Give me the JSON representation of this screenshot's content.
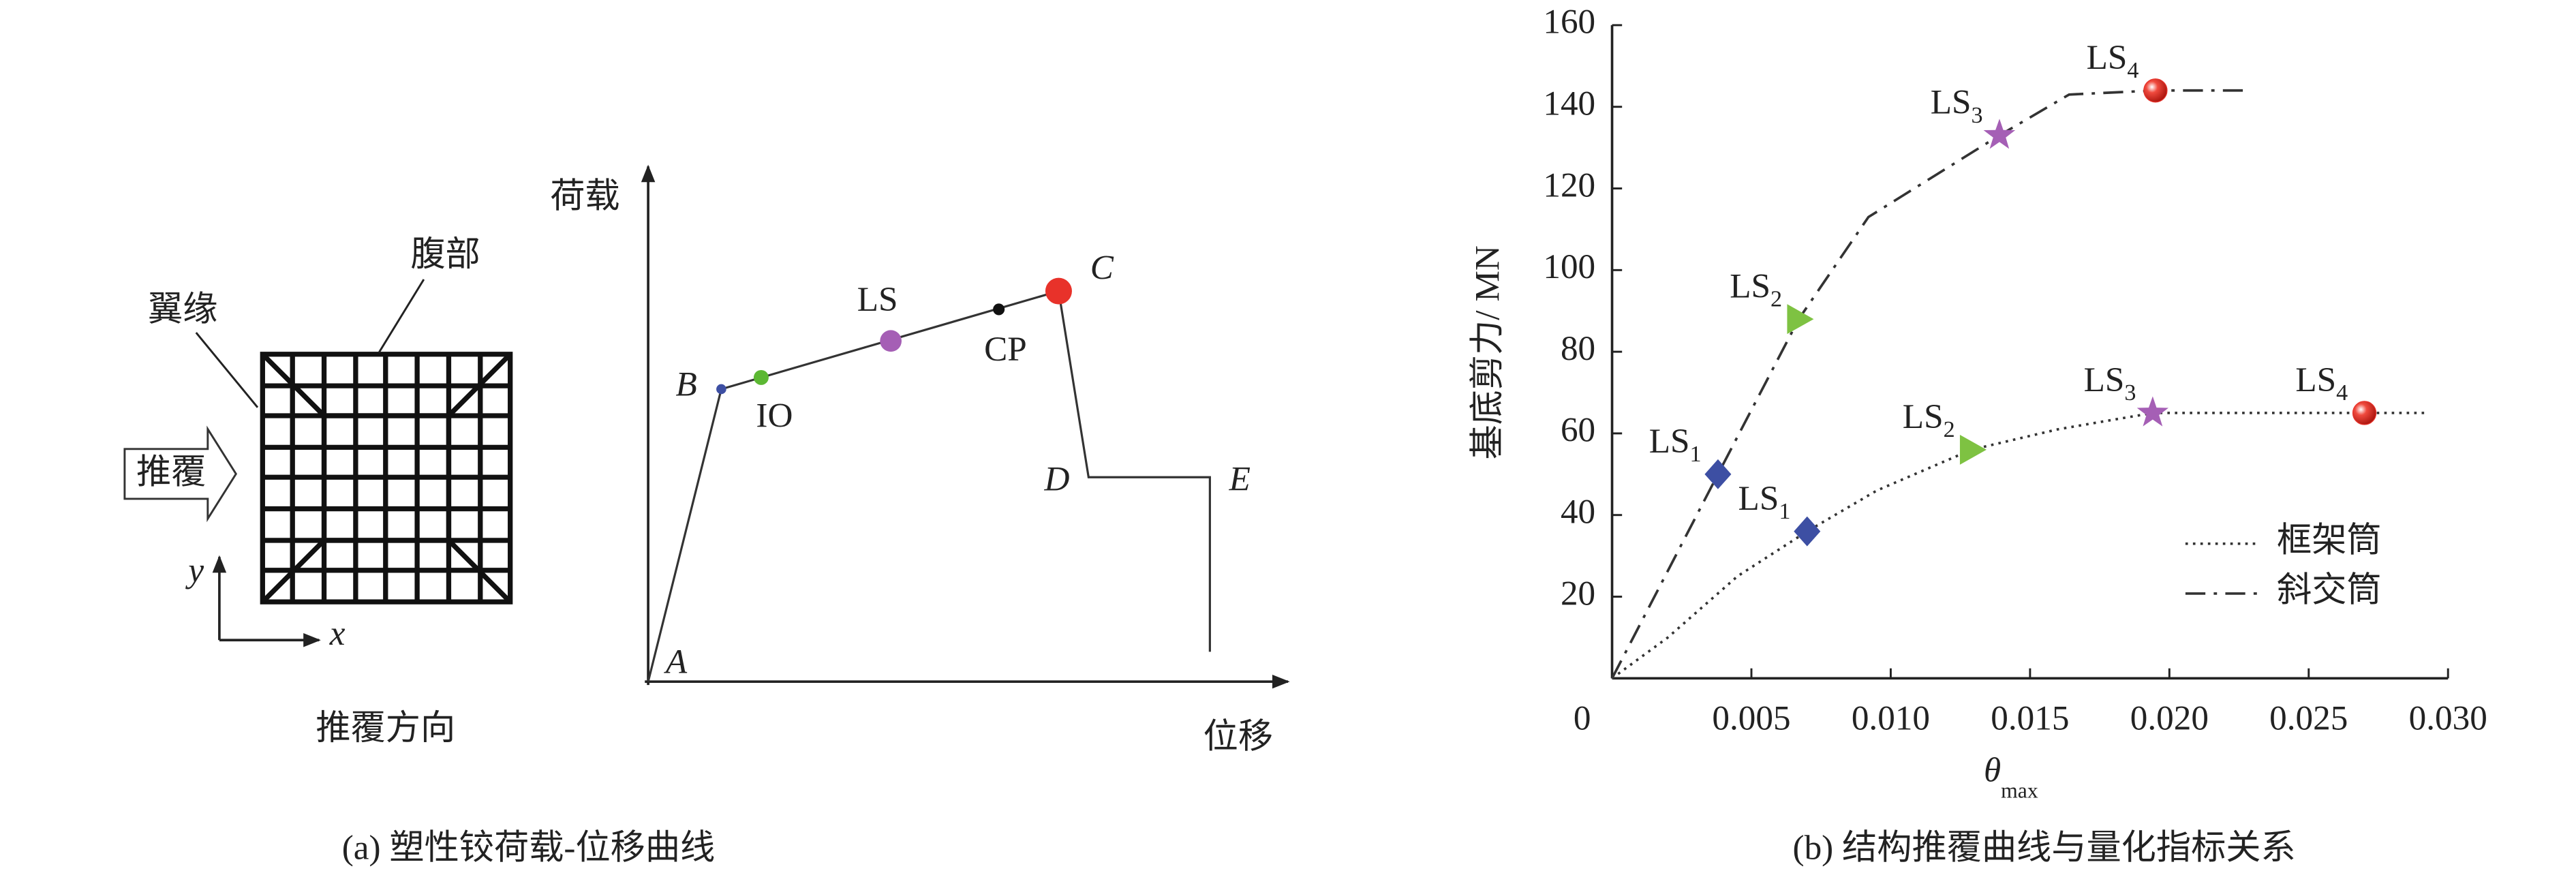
{
  "panel_a": {
    "caption": "(a) 塑性铰荷载-位移曲线",
    "section": {
      "web": "腹部",
      "flange": "翼缘",
      "push": "推覆",
      "y_axis": "y",
      "x_axis": "x",
      "direction": "推覆方向"
    },
    "curve": {
      "y_label": "荷载",
      "x_label": "位移",
      "points": [
        "A",
        "B",
        "C",
        "D",
        "E"
      ],
      "states": [
        "IO",
        "LS",
        "CP"
      ]
    }
  },
  "chart_data": {
    "type": "line",
    "caption": "(b) 结构推覆曲线与量化指标关系",
    "x_label": {
      "text": "θ",
      "sub": "max"
    },
    "y_label": "基底剪力/ MN",
    "xlim": [
      0,
      0.03
    ],
    "ylim": [
      0,
      160
    ],
    "xticks": [
      0,
      0.005,
      {
        "value": 0.01,
        "label": "0.010"
      },
      0.015,
      {
        "value": 0.02,
        "label": "0.020"
      },
      0.025,
      {
        "value": 0.03,
        "label": "0.030"
      }
    ],
    "yticks": [
      20,
      40,
      60,
      80,
      100,
      120,
      140,
      160
    ],
    "legend": "lower right",
    "series": [
      {
        "name": "框架筒",
        "color": "#333333",
        "dash": "dotted",
        "x": [
          0,
          0.002,
          0.0045,
          0.007,
          0.0095,
          0.0129,
          0.016,
          0.0194,
          0.027,
          0.0292
        ],
        "values": [
          0,
          10,
          25,
          36,
          46,
          56,
          61,
          65,
          65,
          65
        ],
        "markers": [
          {
            "x": 0.007,
            "y": 36,
            "shape": "diamond",
            "color": "#3d4fa3",
            "label": {
              "text": "LS",
              "sub": "1"
            }
          },
          {
            "x": 0.0129,
            "y": 56,
            "shape": "triangle",
            "color": "#7ec242",
            "label": {
              "text": "LS",
              "sub": "2"
            }
          },
          {
            "x": 0.0194,
            "y": 65,
            "shape": "star",
            "color": "#a55fb5",
            "label": {
              "text": "LS",
              "sub": "3"
            }
          },
          {
            "x": 0.027,
            "y": 65,
            "shape": "sphere",
            "color": "#e8322a",
            "label": {
              "text": "LS",
              "sub": "4"
            }
          }
        ]
      },
      {
        "name": "斜交筒",
        "color": "#333333",
        "dash": "dashdot",
        "x": [
          0,
          0.0038,
          0.0067,
          0.0092,
          0.0139,
          0.0164,
          0.0195,
          0.0227
        ],
        "values": [
          0,
          50,
          88,
          113,
          133,
          143,
          144,
          144
        ],
        "markers": [
          {
            "x": 0.0038,
            "y": 50,
            "shape": "diamond",
            "color": "#3d4fa3",
            "label": {
              "text": "LS",
              "sub": "1"
            }
          },
          {
            "x": 0.0067,
            "y": 88,
            "shape": "triangle",
            "color": "#7ec242",
            "label": {
              "text": "LS",
              "sub": "2"
            }
          },
          {
            "x": 0.0139,
            "y": 133,
            "shape": "star",
            "color": "#a55fb5",
            "label": {
              "text": "LS",
              "sub": "3"
            }
          },
          {
            "x": 0.0195,
            "y": 144,
            "shape": "sphere",
            "color": "#e8322a",
            "label": {
              "text": "LS",
              "sub": "4"
            }
          }
        ]
      }
    ]
  }
}
